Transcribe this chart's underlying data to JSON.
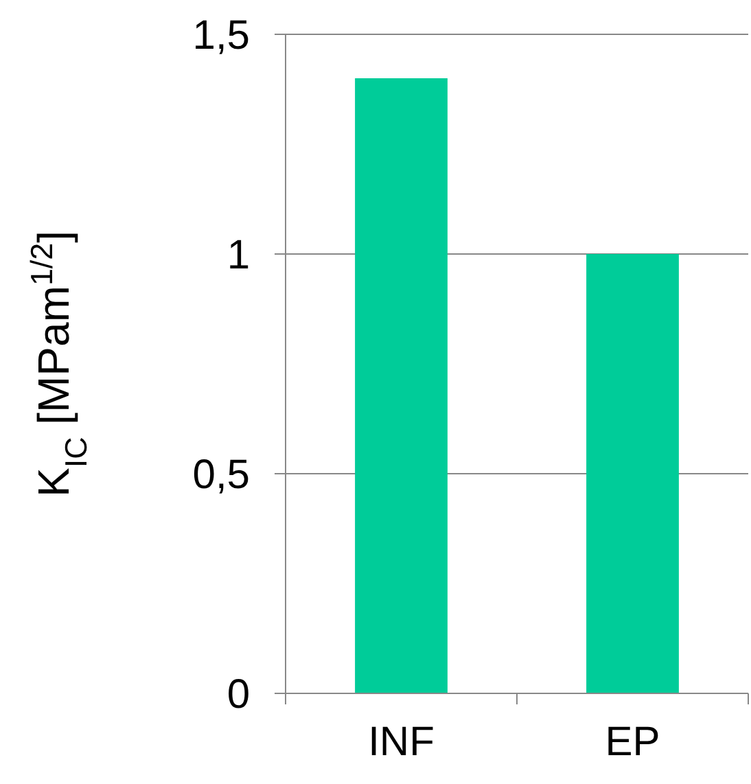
{
  "chart_data": {
    "type": "bar",
    "ylabel": "K$_{IC}$ [MPam$^{1/2}$]",
    "categories": [
      "INF",
      "EP"
    ],
    "values": [
      1.4,
      1.0
    ],
    "color": "#00cc99",
    "ylim": [
      0,
      1.5
    ],
    "yticks": [
      0,
      {
        "value": 0.5,
        "label": "0,5"
      },
      1,
      {
        "value": 1.5,
        "label": "1,5"
      }
    ],
    "grid": "y"
  }
}
